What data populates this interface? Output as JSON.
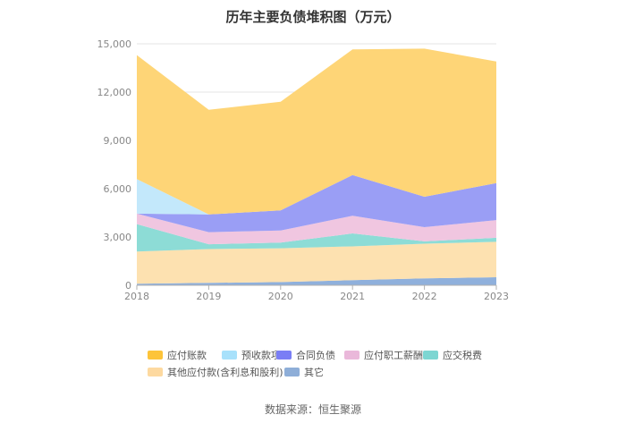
{
  "chart_data": {
    "type": "area",
    "stacked": true,
    "title": "历年主要负债堆积图（万元）",
    "source": "数据来源：恒生聚源",
    "x": [
      "2018",
      "2019",
      "2020",
      "2021",
      "2022",
      "2023"
    ],
    "ylim": [
      0,
      15000
    ],
    "yticks": [
      "0",
      "3,000",
      "6,000",
      "9,000",
      "12,000",
      "15,000"
    ],
    "ytick_values": [
      0,
      3000,
      6000,
      9000,
      12000,
      15000
    ],
    "grid": true,
    "legend_position": "bottom",
    "series": [
      {
        "name": "其它",
        "color": "#8fb0dc",
        "values": [
          100,
          150,
          200,
          320,
          430,
          500
        ]
      },
      {
        "name": "其他应付款(含利息和股利)",
        "color": "#fde1b0",
        "values": [
          2000,
          2100,
          2100,
          2100,
          2150,
          2200
        ]
      },
      {
        "name": "应交税费",
        "color": "#8ddcd6",
        "values": [
          1700,
          300,
          350,
          800,
          150,
          250
        ]
      },
      {
        "name": "应付职工薪酬",
        "color": "#f0c6e0",
        "values": [
          650,
          750,
          750,
          1100,
          880,
          1100
        ]
      },
      {
        "name": "合同负债",
        "color": "#9a9ef5",
        "values": [
          0,
          1100,
          1250,
          2530,
          1890,
          2300
        ]
      },
      {
        "name": "预收款项",
        "color": "#c3e8fb",
        "values": [
          2150,
          0,
          0,
          0,
          0,
          0
        ]
      },
      {
        "name": "应付账款",
        "color": "#fed577",
        "values": [
          7700,
          6500,
          6750,
          7800,
          9200,
          7550
        ]
      }
    ],
    "legend_order": [
      "应付账款",
      "预收款项",
      "合同负债",
      "应付职工薪酬",
      "应交税费",
      "其他应付款(含利息和股利)",
      "其它"
    ],
    "legend_colors": {
      "应付账款": "#fdc43a",
      "预收款项": "#a8e1fb",
      "合同负债": "#7a7ef5",
      "应付职工薪酬": "#eab8da",
      "应交税费": "#7dd6d2",
      "其他应付款(含利息和股利)": "#fdd9a0",
      "其它": "#8eaed8"
    }
  }
}
